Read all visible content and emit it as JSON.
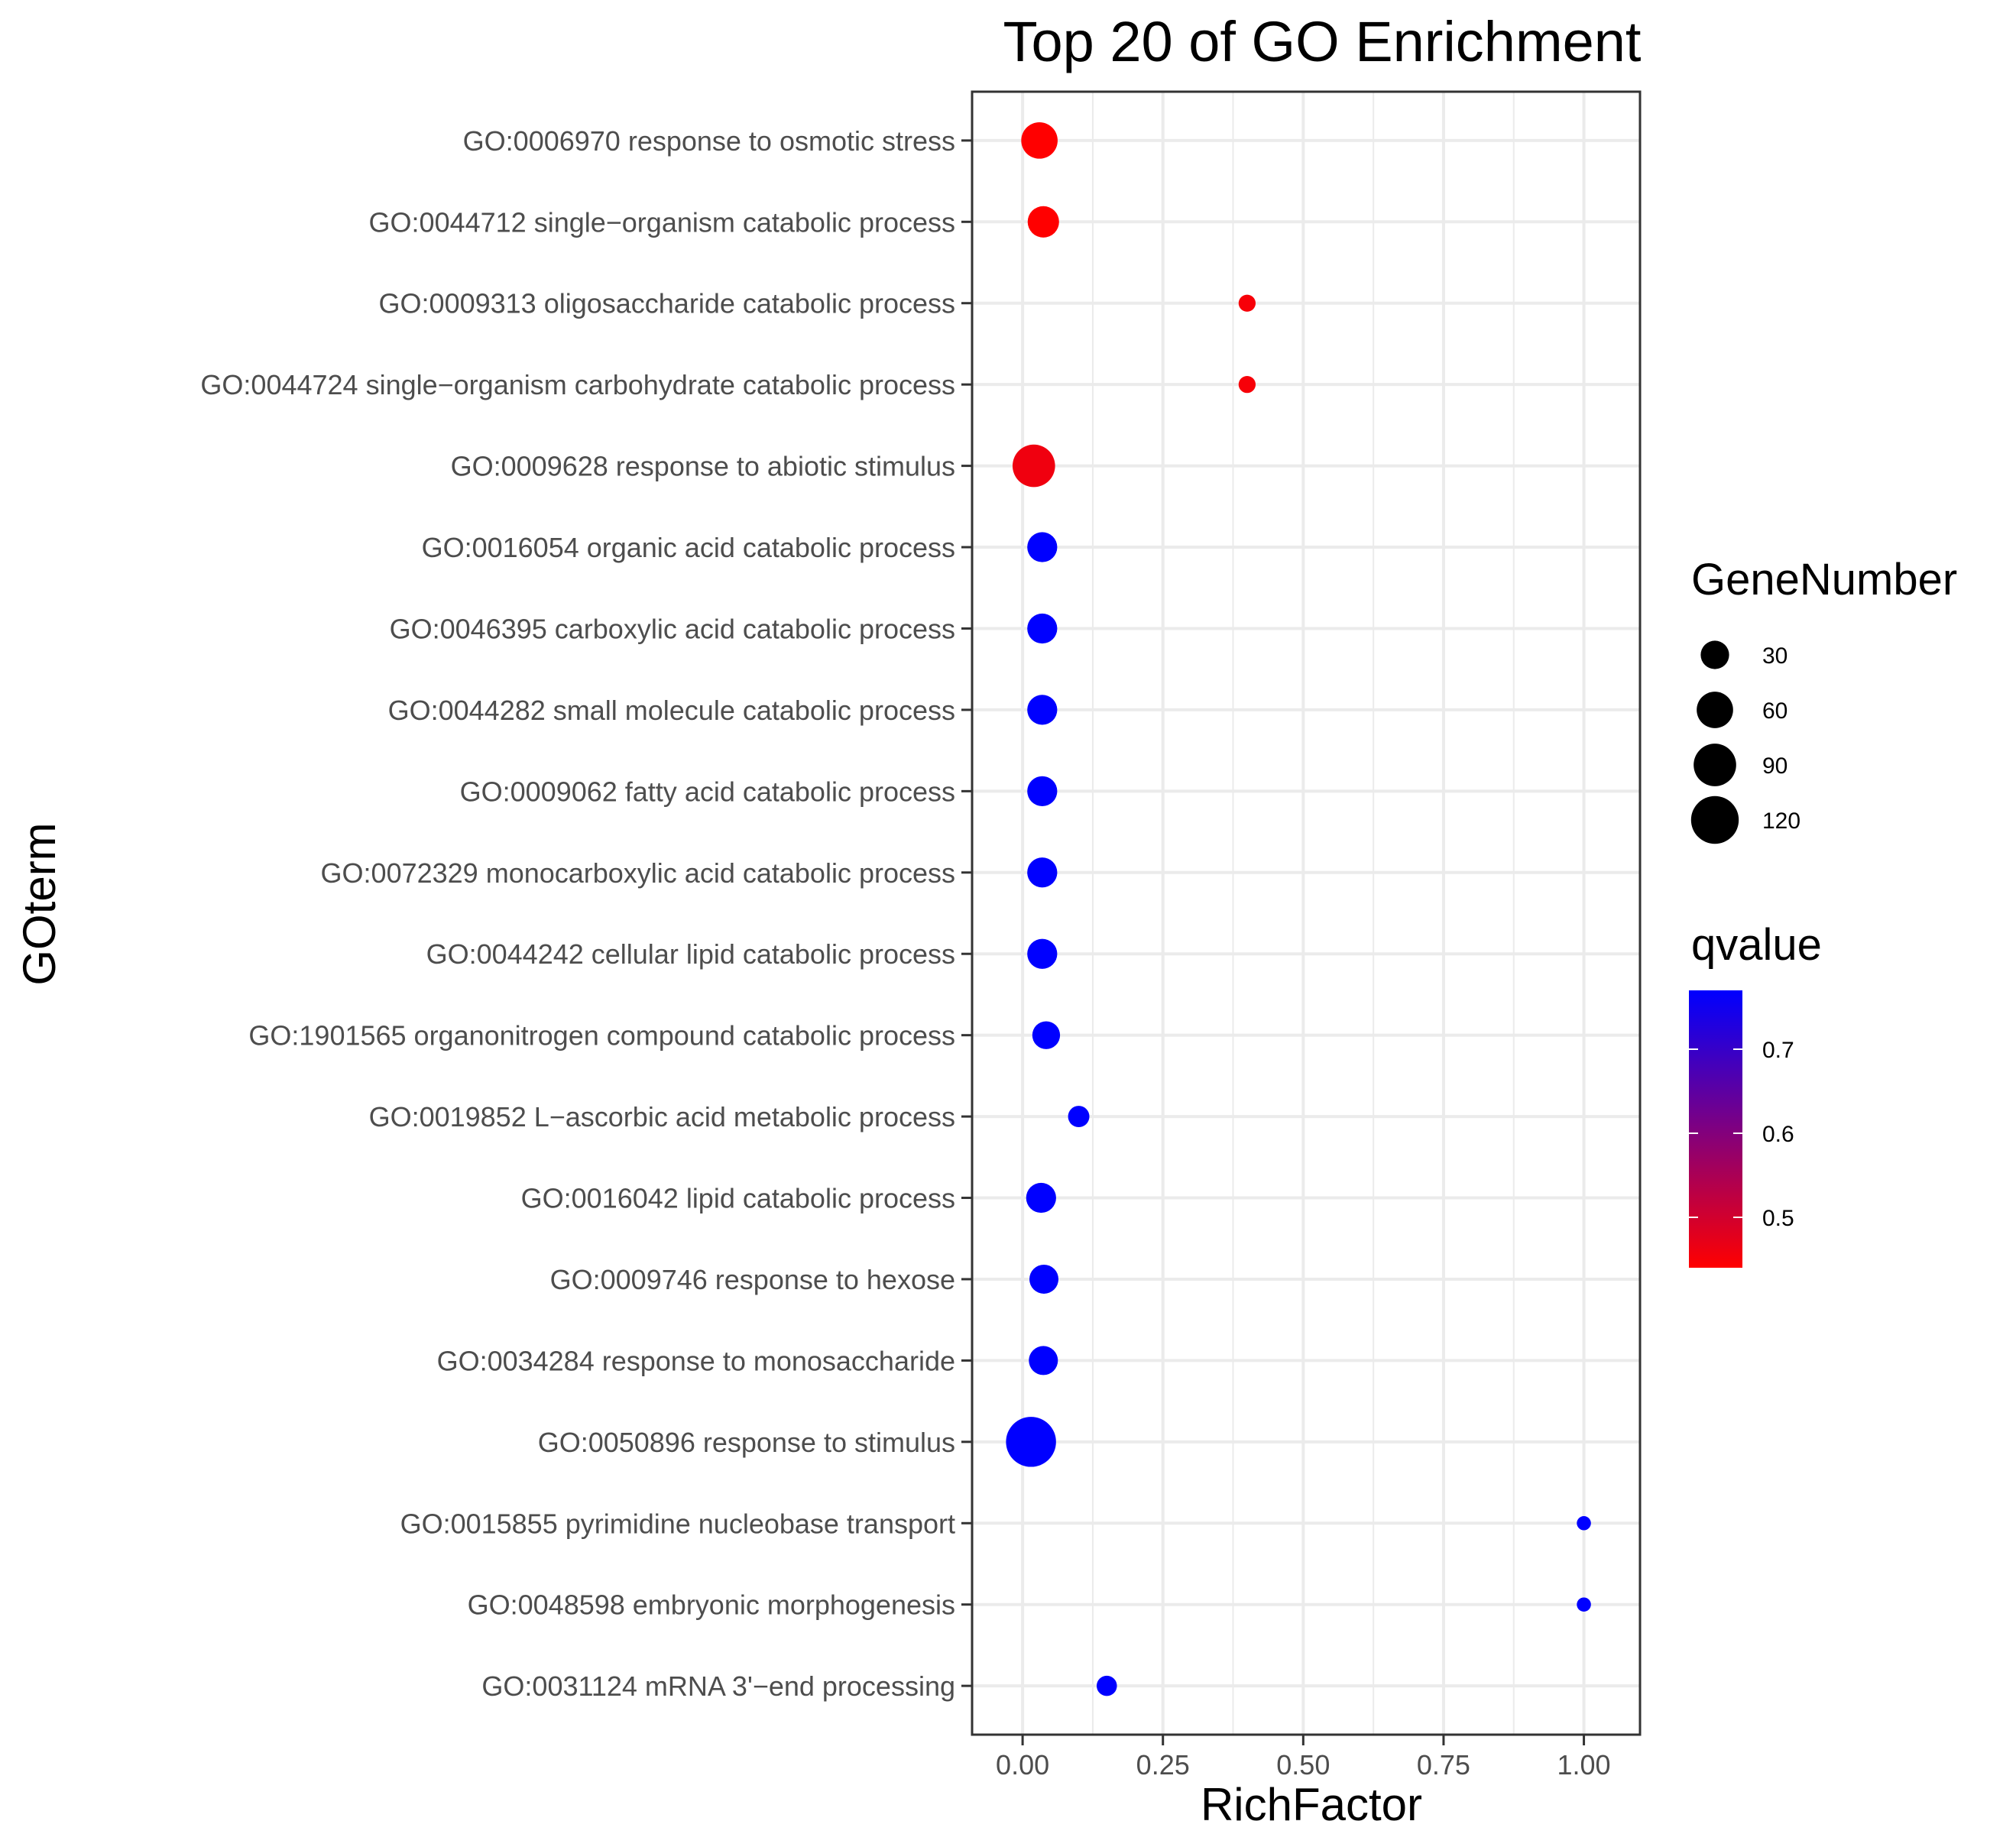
{
  "chart_data": {
    "type": "scatter",
    "title": "Top 20 of GO Enrichment",
    "xlabel": "RichFactor",
    "ylabel": "GOterm",
    "xlim": [
      -0.09,
      1.1
    ],
    "x_ticks": [
      0.0,
      0.25,
      0.5,
      0.75,
      1.0
    ],
    "x_tick_labels": [
      "0.00",
      "0.25",
      "0.50",
      "0.75",
      "1.00"
    ],
    "grid": true,
    "legend_position": "right",
    "size_legend": {
      "title": "GeneNumber",
      "breaks": [
        30,
        60,
        90,
        120
      ],
      "labels": [
        "30",
        "60",
        "90",
        "120"
      ]
    },
    "color_legend": {
      "title": "qvalue",
      "low_color": "#ff0000",
      "high_color": "#0000ff",
      "range": [
        0.44,
        0.77
      ],
      "breaks": [
        0.5,
        0.6,
        0.7
      ],
      "labels": [
        "0.5",
        "0.6",
        "0.7"
      ]
    },
    "points": [
      {
        "term": "GO:0006970 response to osmotic stress",
        "rich_factor": 0.03,
        "gene_number": 60,
        "qvalue": 0.44
      },
      {
        "term": "GO:0044712 single−organism catabolic process",
        "rich_factor": 0.037,
        "gene_number": 40,
        "qvalue": 0.44
      },
      {
        "term": "GO:0009313 oligosaccharide catabolic process",
        "rich_factor": 0.4,
        "gene_number": 5,
        "qvalue": 0.45
      },
      {
        "term": "GO:0044724 single−organism carbohydrate catabolic process",
        "rich_factor": 0.4,
        "gene_number": 5,
        "qvalue": 0.45
      },
      {
        "term": "GO:0009628 response to abiotic stimulus",
        "rich_factor": 0.02,
        "gene_number": 90,
        "qvalue": 0.46
      },
      {
        "term": "GO:0016054 organic acid catabolic process",
        "rich_factor": 0.035,
        "gene_number": 35,
        "qvalue": 0.77
      },
      {
        "term": "GO:0046395 carboxylic acid catabolic process",
        "rich_factor": 0.035,
        "gene_number": 35,
        "qvalue": 0.77
      },
      {
        "term": "GO:0044282 small molecule catabolic process",
        "rich_factor": 0.035,
        "gene_number": 35,
        "qvalue": 0.77
      },
      {
        "term": "GO:0009062 fatty acid catabolic process",
        "rich_factor": 0.035,
        "gene_number": 35,
        "qvalue": 0.77
      },
      {
        "term": "GO:0072329 monocarboxylic acid catabolic process",
        "rich_factor": 0.035,
        "gene_number": 35,
        "qvalue": 0.77
      },
      {
        "term": "GO:0044242 cellular lipid catabolic process",
        "rich_factor": 0.035,
        "gene_number": 35,
        "qvalue": 0.77
      },
      {
        "term": "GO:1901565 organonitrogen compound catabolic process",
        "rich_factor": 0.042,
        "gene_number": 28,
        "qvalue": 0.77
      },
      {
        "term": "GO:0019852 L−ascorbic acid metabolic process",
        "rich_factor": 0.1,
        "gene_number": 12,
        "qvalue": 0.77
      },
      {
        "term": "GO:0016042 lipid catabolic process",
        "rich_factor": 0.033,
        "gene_number": 35,
        "qvalue": 0.77
      },
      {
        "term": "GO:0009746 response to hexose",
        "rich_factor": 0.038,
        "gene_number": 32,
        "qvalue": 0.77
      },
      {
        "term": "GO:0034284 response to monosaccharide",
        "rich_factor": 0.037,
        "gene_number": 32,
        "qvalue": 0.77
      },
      {
        "term": "GO:0050896 response to stimulus",
        "rich_factor": 0.015,
        "gene_number": 135,
        "qvalue": 0.77
      },
      {
        "term": "GO:0015855 pyrimidine nucleobase transport",
        "rich_factor": 1.0,
        "gene_number": 2,
        "qvalue": 0.77
      },
      {
        "term": "GO:0048598 embryonic morphogenesis",
        "rich_factor": 1.0,
        "gene_number": 2,
        "qvalue": 0.77
      },
      {
        "term": "GO:0031124 mRNA 3'−end processing",
        "rich_factor": 0.15,
        "gene_number": 10,
        "qvalue": 0.77
      }
    ]
  }
}
